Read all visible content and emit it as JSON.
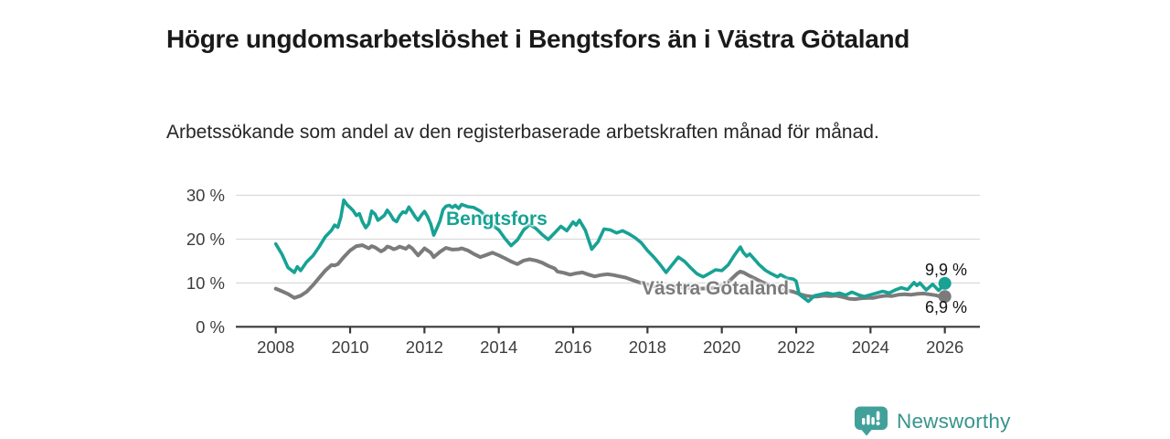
{
  "chart_data": {
    "type": "line",
    "title": "Högre ungdomsarbetslöshet i Bengtsfors än i Västra Götaland",
    "subtitle": "Arbetssökande som andel av den registerbaserade arbetskraften månad för månad.",
    "xlabel": "",
    "ylabel": "",
    "unit": "%",
    "x_is_decimal_year": true,
    "xlim": [
      2006.93,
      2026.94
    ],
    "ylim": [
      0,
      30
    ],
    "grid": "horizontal",
    "legend_position": "inline-labels",
    "yticks": [
      {
        "value": 0,
        "label": "0 %"
      },
      {
        "value": 10,
        "label": "10 %"
      },
      {
        "value": 20,
        "label": "20 %"
      },
      {
        "value": 30,
        "label": "30 %"
      }
    ],
    "xticks": [
      {
        "value": 2008,
        "label": "2008"
      },
      {
        "value": 2010,
        "label": "2010"
      },
      {
        "value": 2012,
        "label": "2012"
      },
      {
        "value": 2014,
        "label": "2014"
      },
      {
        "value": 2016,
        "label": "2016"
      },
      {
        "value": 2018,
        "label": "2018"
      },
      {
        "value": 2020,
        "label": "2020"
      },
      {
        "value": 2022,
        "label": "2022"
      },
      {
        "value": 2024,
        "label": "2024"
      },
      {
        "value": 2026,
        "label": "2026"
      }
    ],
    "series": [
      {
        "name": "Bengtsfors",
        "color": "#17a294",
        "end_value": 9.9,
        "end_label": "9,9 %",
        "points": [
          [
            2008.0,
            18.9
          ],
          [
            2008.17,
            16.5
          ],
          [
            2008.33,
            13.5
          ],
          [
            2008.5,
            12.4
          ],
          [
            2008.58,
            13.7
          ],
          [
            2008.67,
            12.8
          ],
          [
            2008.83,
            14.8
          ],
          [
            2009.0,
            16.2
          ],
          [
            2009.17,
            18.3
          ],
          [
            2009.33,
            20.5
          ],
          [
            2009.5,
            22.0
          ],
          [
            2009.58,
            23.2
          ],
          [
            2009.67,
            22.7
          ],
          [
            2009.75,
            25.0
          ],
          [
            2009.83,
            28.9
          ],
          [
            2009.92,
            27.8
          ],
          [
            2010.0,
            27.2
          ],
          [
            2010.08,
            26.5
          ],
          [
            2010.17,
            25.4
          ],
          [
            2010.25,
            25.8
          ],
          [
            2010.33,
            24.0
          ],
          [
            2010.42,
            22.6
          ],
          [
            2010.5,
            23.5
          ],
          [
            2010.58,
            26.4
          ],
          [
            2010.67,
            25.7
          ],
          [
            2010.75,
            24.3
          ],
          [
            2010.83,
            24.8
          ],
          [
            2010.92,
            25.4
          ],
          [
            2011.0,
            26.6
          ],
          [
            2011.08,
            25.7
          ],
          [
            2011.17,
            24.4
          ],
          [
            2011.25,
            24.0
          ],
          [
            2011.33,
            25.3
          ],
          [
            2011.42,
            26.2
          ],
          [
            2011.5,
            26.0
          ],
          [
            2011.58,
            27.3
          ],
          [
            2011.67,
            26.2
          ],
          [
            2011.75,
            25.1
          ],
          [
            2011.83,
            24.3
          ],
          [
            2011.92,
            25.5
          ],
          [
            2012.0,
            26.3
          ],
          [
            2012.08,
            25.2
          ],
          [
            2012.17,
            23.4
          ],
          [
            2012.25,
            20.9
          ],
          [
            2012.33,
            22.4
          ],
          [
            2012.42,
            24.2
          ],
          [
            2012.5,
            26.7
          ],
          [
            2012.58,
            27.5
          ],
          [
            2012.67,
            27.7
          ],
          [
            2012.75,
            27.2
          ],
          [
            2012.83,
            27.7
          ],
          [
            2012.92,
            27.0
          ],
          [
            2013.0,
            27.9
          ],
          [
            2013.17,
            27.4
          ],
          [
            2013.33,
            27.2
          ],
          [
            2013.5,
            26.4
          ],
          [
            2013.67,
            24.9
          ],
          [
            2013.83,
            23.2
          ],
          [
            2014.0,
            22.1
          ],
          [
            2014.17,
            20.1
          ],
          [
            2014.33,
            18.5
          ],
          [
            2014.5,
            19.8
          ],
          [
            2014.67,
            22.1
          ],
          [
            2014.83,
            23.3
          ],
          [
            2015.0,
            22.4
          ],
          [
            2015.17,
            21.0
          ],
          [
            2015.33,
            19.9
          ],
          [
            2015.5,
            21.4
          ],
          [
            2015.67,
            22.9
          ],
          [
            2015.83,
            21.9
          ],
          [
            2016.0,
            23.9
          ],
          [
            2016.08,
            23.2
          ],
          [
            2016.17,
            24.3
          ],
          [
            2016.33,
            22.0
          ],
          [
            2016.5,
            17.7
          ],
          [
            2016.67,
            19.4
          ],
          [
            2016.83,
            22.3
          ],
          [
            2017.0,
            22.1
          ],
          [
            2017.17,
            21.4
          ],
          [
            2017.33,
            21.9
          ],
          [
            2017.5,
            21.2
          ],
          [
            2017.67,
            20.3
          ],
          [
            2017.83,
            19.2
          ],
          [
            2018.0,
            17.4
          ],
          [
            2018.17,
            15.9
          ],
          [
            2018.33,
            14.3
          ],
          [
            2018.5,
            12.4
          ],
          [
            2018.67,
            14.2
          ],
          [
            2018.83,
            15.9
          ],
          [
            2019.0,
            14.9
          ],
          [
            2019.17,
            13.4
          ],
          [
            2019.33,
            12.1
          ],
          [
            2019.5,
            11.4
          ],
          [
            2019.67,
            12.2
          ],
          [
            2019.83,
            13.0
          ],
          [
            2020.0,
            12.8
          ],
          [
            2020.17,
            14.1
          ],
          [
            2020.33,
            16.2
          ],
          [
            2020.5,
            18.2
          ],
          [
            2020.58,
            16.9
          ],
          [
            2020.67,
            16.1
          ],
          [
            2020.75,
            16.6
          ],
          [
            2020.92,
            15.0
          ],
          [
            2021.0,
            14.2
          ],
          [
            2021.17,
            12.9
          ],
          [
            2021.33,
            12.1
          ],
          [
            2021.5,
            11.4
          ],
          [
            2021.58,
            11.9
          ],
          [
            2021.75,
            11.1
          ],
          [
            2021.92,
            10.9
          ],
          [
            2022.0,
            10.4
          ],
          [
            2022.08,
            7.4
          ],
          [
            2022.25,
            6.3
          ],
          [
            2022.33,
            5.8
          ],
          [
            2022.5,
            7.1
          ],
          [
            2022.67,
            7.4
          ],
          [
            2022.83,
            7.7
          ],
          [
            2023.0,
            7.4
          ],
          [
            2023.17,
            7.7
          ],
          [
            2023.33,
            7.2
          ],
          [
            2023.5,
            7.9
          ],
          [
            2023.67,
            7.3
          ],
          [
            2023.83,
            6.9
          ],
          [
            2024.0,
            7.3
          ],
          [
            2024.17,
            7.7
          ],
          [
            2024.33,
            8.1
          ],
          [
            2024.5,
            7.7
          ],
          [
            2024.67,
            8.4
          ],
          [
            2024.83,
            8.9
          ],
          [
            2025.0,
            8.5
          ],
          [
            2025.17,
            10.1
          ],
          [
            2025.25,
            9.4
          ],
          [
            2025.33,
            10.0
          ],
          [
            2025.5,
            8.4
          ],
          [
            2025.67,
            9.7
          ],
          [
            2025.83,
            8.3
          ],
          [
            2025.92,
            9.0
          ],
          [
            2026.0,
            9.9
          ]
        ]
      },
      {
        "name": "Västra Götaland",
        "color": "#7b7b7b",
        "end_value": 6.9,
        "end_label": "6,9 %",
        "points": [
          [
            2008.0,
            8.7
          ],
          [
            2008.17,
            8.1
          ],
          [
            2008.33,
            7.5
          ],
          [
            2008.5,
            6.6
          ],
          [
            2008.67,
            7.1
          ],
          [
            2008.83,
            8.0
          ],
          [
            2009.0,
            9.5
          ],
          [
            2009.17,
            11.2
          ],
          [
            2009.33,
            12.8
          ],
          [
            2009.5,
            14.1
          ],
          [
            2009.58,
            14.0
          ],
          [
            2009.67,
            14.3
          ],
          [
            2009.83,
            15.9
          ],
          [
            2010.0,
            17.4
          ],
          [
            2010.17,
            18.4
          ],
          [
            2010.33,
            18.6
          ],
          [
            2010.5,
            17.9
          ],
          [
            2010.58,
            18.4
          ],
          [
            2010.67,
            18.1
          ],
          [
            2010.83,
            17.2
          ],
          [
            2010.92,
            17.6
          ],
          [
            2011.0,
            18.3
          ],
          [
            2011.08,
            18.1
          ],
          [
            2011.17,
            17.7
          ],
          [
            2011.25,
            17.9
          ],
          [
            2011.33,
            18.3
          ],
          [
            2011.5,
            17.8
          ],
          [
            2011.58,
            18.4
          ],
          [
            2011.67,
            17.9
          ],
          [
            2011.83,
            16.3
          ],
          [
            2011.92,
            17.1
          ],
          [
            2012.0,
            17.9
          ],
          [
            2012.17,
            16.9
          ],
          [
            2012.25,
            15.9
          ],
          [
            2012.42,
            17.1
          ],
          [
            2012.58,
            18.0
          ],
          [
            2012.75,
            17.6
          ],
          [
            2012.92,
            17.7
          ],
          [
            2013.0,
            17.9
          ],
          [
            2013.17,
            17.4
          ],
          [
            2013.33,
            16.6
          ],
          [
            2013.5,
            15.9
          ],
          [
            2013.67,
            16.4
          ],
          [
            2013.83,
            16.9
          ],
          [
            2014.0,
            16.3
          ],
          [
            2014.17,
            15.6
          ],
          [
            2014.33,
            14.9
          ],
          [
            2014.5,
            14.3
          ],
          [
            2014.67,
            15.1
          ],
          [
            2014.83,
            15.4
          ],
          [
            2015.0,
            15.1
          ],
          [
            2015.17,
            14.6
          ],
          [
            2015.33,
            13.9
          ],
          [
            2015.5,
            13.3
          ],
          [
            2015.58,
            12.6
          ],
          [
            2015.75,
            12.3
          ],
          [
            2015.92,
            11.9
          ],
          [
            2016.08,
            12.2
          ],
          [
            2016.25,
            12.4
          ],
          [
            2016.42,
            11.9
          ],
          [
            2016.58,
            11.5
          ],
          [
            2016.75,
            11.8
          ],
          [
            2016.92,
            12.0
          ],
          [
            2017.08,
            11.8
          ],
          [
            2017.25,
            11.5
          ],
          [
            2017.42,
            11.2
          ],
          [
            2017.58,
            10.7
          ],
          [
            2017.75,
            10.2
          ],
          [
            2017.92,
            9.8
          ],
          [
            2018.08,
            9.4
          ],
          [
            2018.25,
            9.1
          ],
          [
            2018.42,
            8.8
          ],
          [
            2018.58,
            8.9
          ],
          [
            2018.75,
            9.1
          ],
          [
            2018.92,
            9.0
          ],
          [
            2019.17,
            8.8
          ],
          [
            2019.42,
            8.7
          ],
          [
            2019.67,
            8.8
          ],
          [
            2019.92,
            9.1
          ],
          [
            2020.08,
            9.6
          ],
          [
            2020.25,
            10.8
          ],
          [
            2020.42,
            12.2
          ],
          [
            2020.5,
            12.6
          ],
          [
            2020.58,
            12.4
          ],
          [
            2020.75,
            11.6
          ],
          [
            2020.92,
            10.9
          ],
          [
            2021.08,
            10.2
          ],
          [
            2021.25,
            9.6
          ],
          [
            2021.42,
            9.0
          ],
          [
            2021.58,
            8.6
          ],
          [
            2021.75,
            8.3
          ],
          [
            2021.92,
            8.0
          ],
          [
            2022.08,
            7.5
          ],
          [
            2022.25,
            7.1
          ],
          [
            2022.42,
            6.9
          ],
          [
            2022.58,
            6.9
          ],
          [
            2022.75,
            7.1
          ],
          [
            2022.92,
            7.0
          ],
          [
            2023.08,
            7.1
          ],
          [
            2023.25,
            6.8
          ],
          [
            2023.42,
            6.4
          ],
          [
            2023.58,
            6.3
          ],
          [
            2023.75,
            6.5
          ],
          [
            2023.92,
            6.6
          ],
          [
            2024.08,
            6.6
          ],
          [
            2024.25,
            6.9
          ],
          [
            2024.42,
            7.1
          ],
          [
            2024.58,
            7.0
          ],
          [
            2024.75,
            7.3
          ],
          [
            2024.92,
            7.4
          ],
          [
            2025.08,
            7.3
          ],
          [
            2025.25,
            7.5
          ],
          [
            2025.42,
            7.6
          ],
          [
            2025.58,
            7.4
          ],
          [
            2025.75,
            7.2
          ],
          [
            2025.92,
            6.8
          ],
          [
            2026.0,
            6.9
          ]
        ]
      }
    ],
    "colors": {
      "axis": "#383838",
      "gridline": "#d9d9d9",
      "tick_label": "#3d3d3d",
      "value_label": "#141414"
    }
  },
  "branding": {
    "name": "Newsworthy",
    "text_color": "#37948d",
    "icon_color": "#41a09a",
    "icon": "bar-chart-pin-icon"
  }
}
